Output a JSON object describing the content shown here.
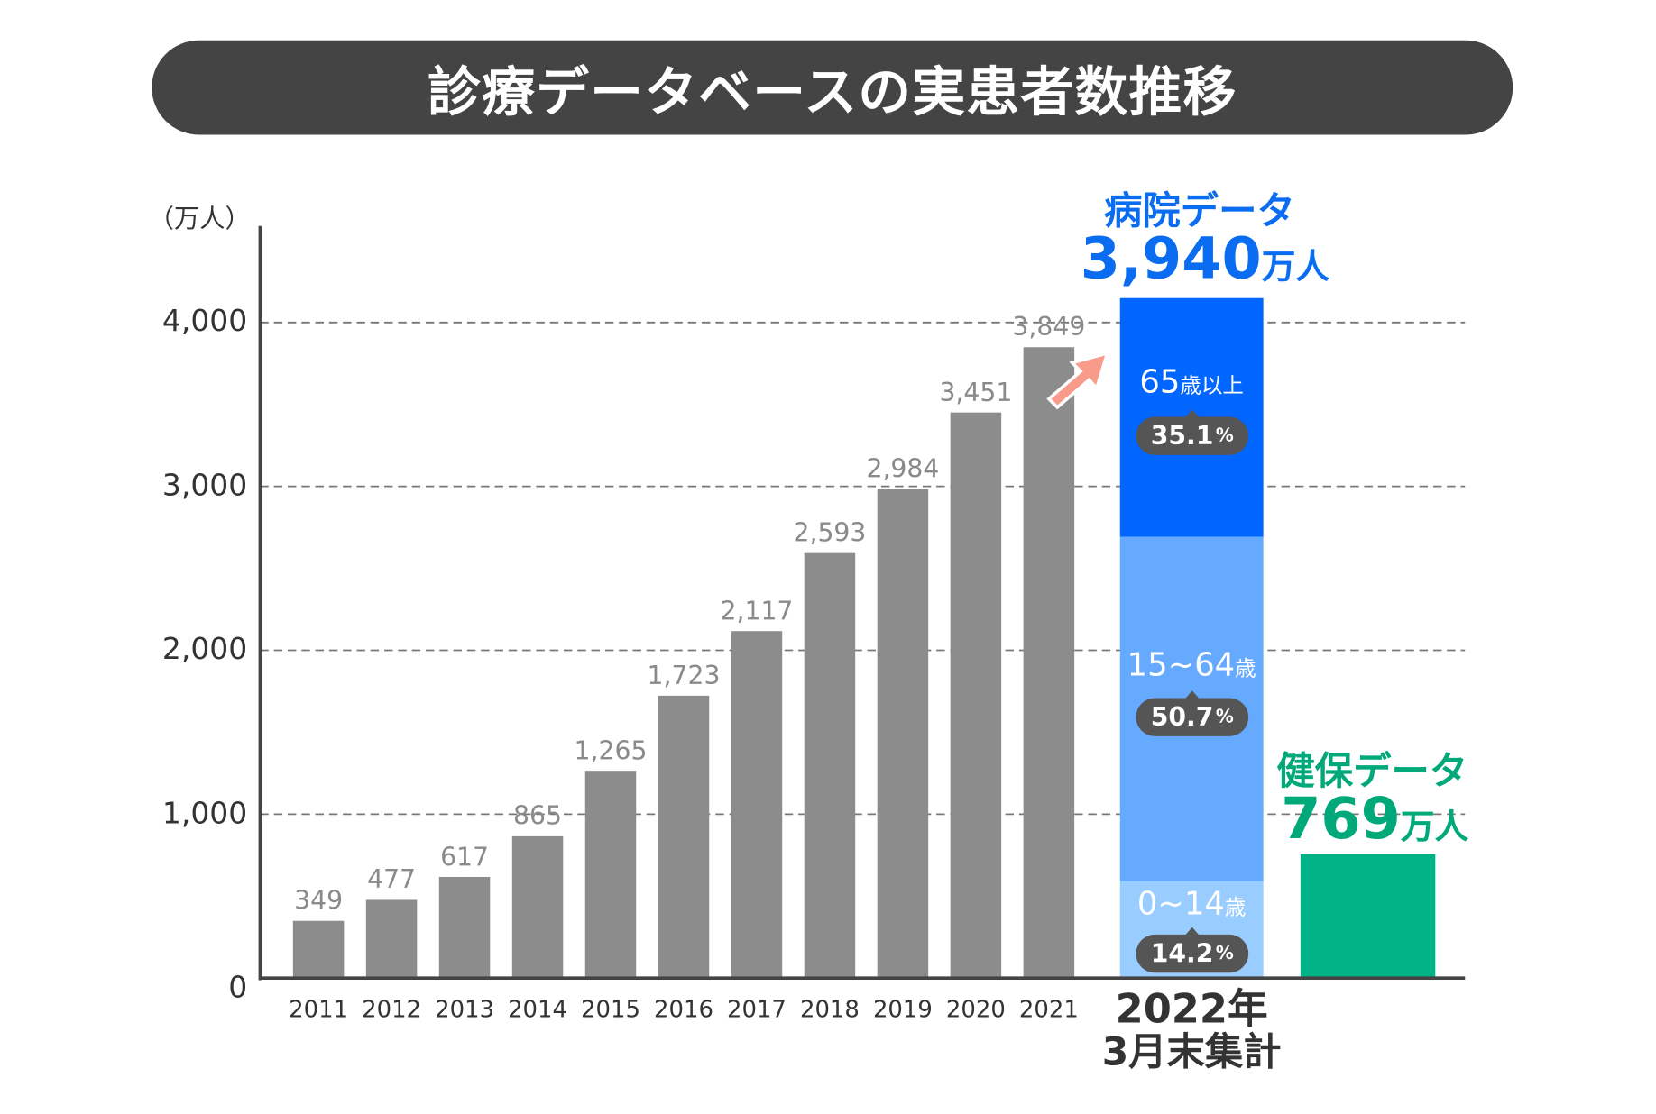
{
  "title": "診療データベースの実患者数推移",
  "chart_data": {
    "type": "bar",
    "ylabel": "（万人）",
    "ylim": [
      0,
      4000
    ],
    "yticks": [
      "0",
      "1,000",
      "2,000",
      "3,000",
      "4,000"
    ],
    "ytick_values": [
      0,
      1000,
      2000,
      3000,
      4000
    ],
    "grid": true,
    "categories": [
      "2011",
      "2012",
      "2013",
      "2014",
      "2015",
      "2016",
      "2017",
      "2018",
      "2019",
      "2020",
      "2021"
    ],
    "values": [
      349,
      477,
      617,
      865,
      1265,
      1723,
      2117,
      2593,
      2984,
      3451,
      3849
    ],
    "value_labels": [
      "349",
      "477",
      "617",
      "865",
      "1,265",
      "1,723",
      "2,117",
      "2,593",
      "2,984",
      "3,451",
      "3,849"
    ],
    "bar_color": "#8c8c8c",
    "summary_category": [
      "2022年",
      "3月末集計"
    ],
    "hospital": {
      "title": "病院データ",
      "total": "3,940",
      "unit": "万人",
      "total_value": 3940,
      "segments": [
        {
          "label": "65",
          "suffix": "歳以上",
          "pct": "35.1",
          "pct_unit": "%",
          "value": 35.1,
          "color": "#0066ff"
        },
        {
          "label": "15~64",
          "suffix": "歳",
          "pct": "50.7",
          "pct_unit": "%",
          "value": 50.7,
          "color": "#66aaff"
        },
        {
          "label": "0~14",
          "suffix": "歳",
          "pct": "14.2",
          "pct_unit": "%",
          "value": 14.2,
          "color": "#99ccff"
        }
      ]
    },
    "insurance": {
      "title": "健保データ",
      "total": "769",
      "unit": "万人",
      "total_value": 769,
      "color": "#00b386"
    },
    "arrow_color": "#f89b8b"
  }
}
